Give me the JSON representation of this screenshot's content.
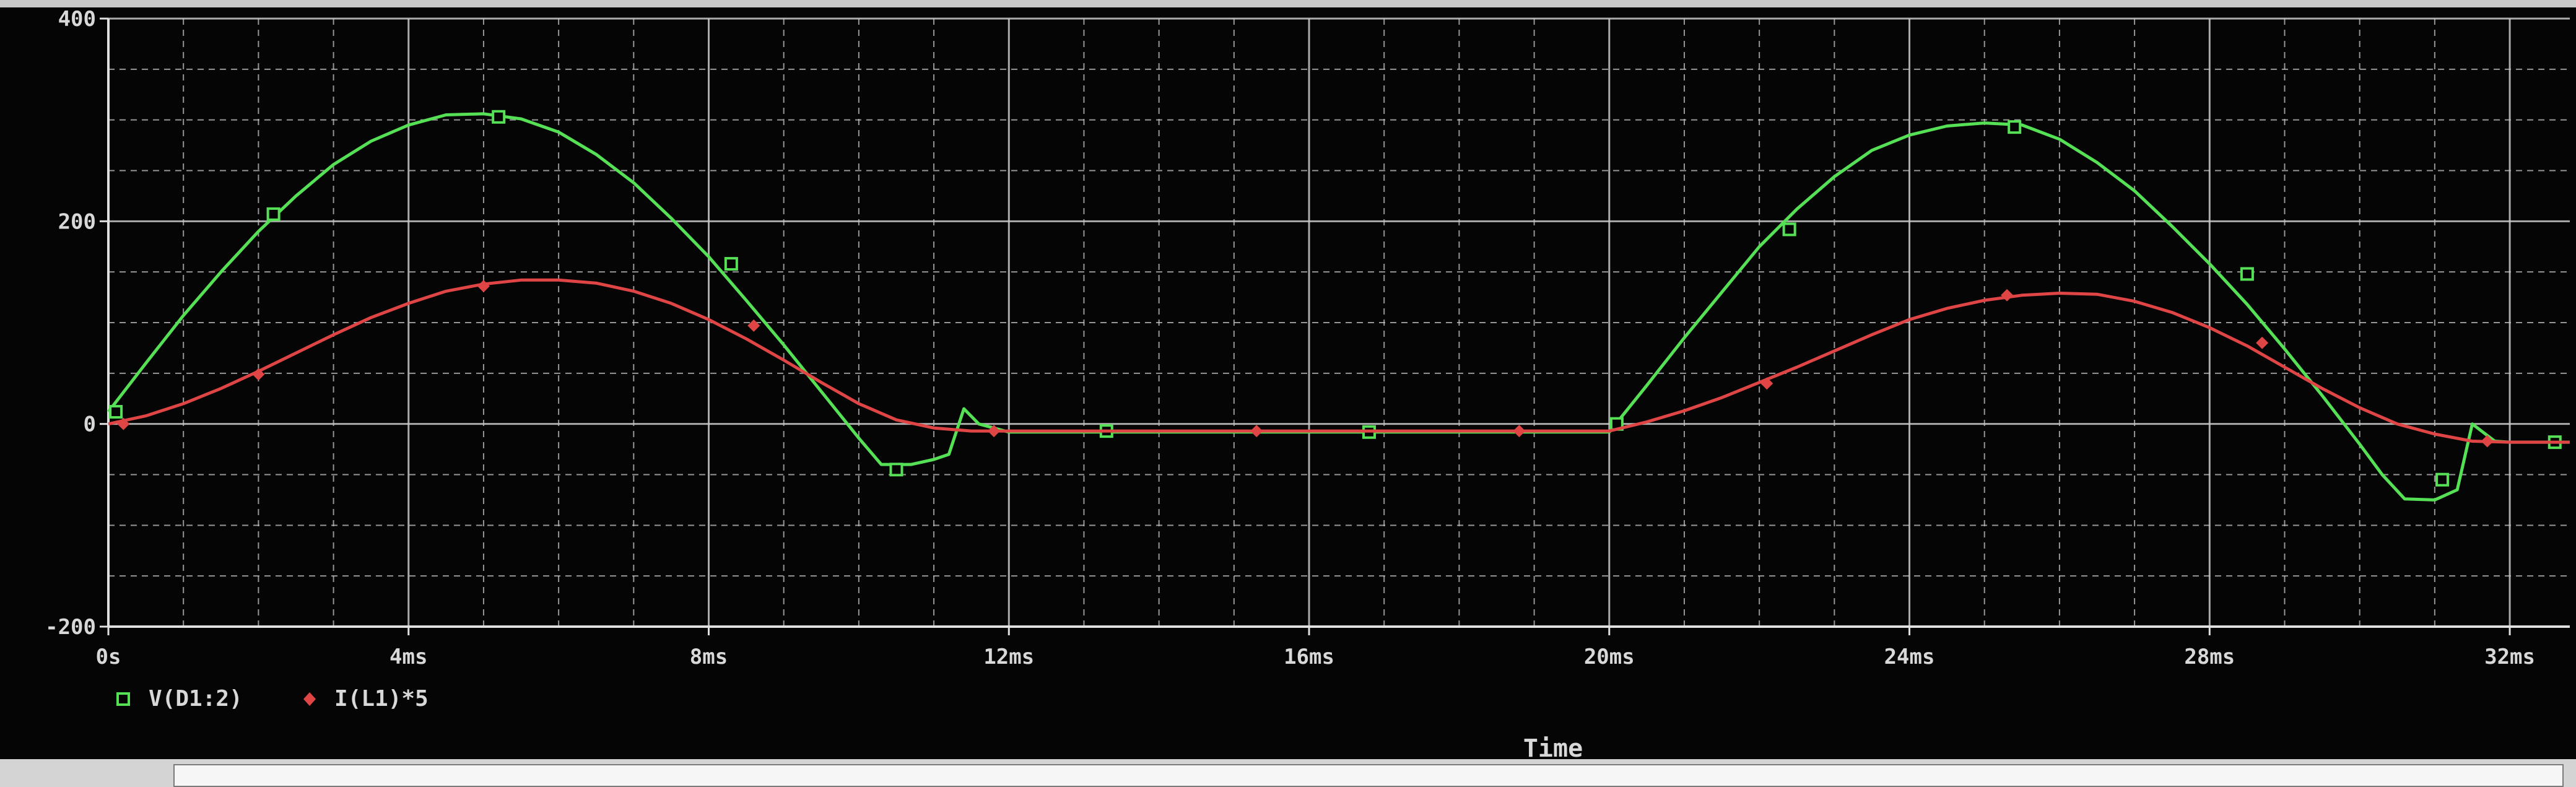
{
  "window": {
    "background": "#000000",
    "grid_color": "#c8c8c8"
  },
  "chart_data": {
    "type": "line",
    "title": "",
    "xlabel": "Time",
    "ylabel": "",
    "xlim": [
      0,
      32.8
    ],
    "ylim": [
      -200,
      400
    ],
    "x_unit": "ms",
    "grid": true,
    "x_ticks": [
      {
        "value": 0,
        "label": "0s"
      },
      {
        "value": 4,
        "label": "4ms"
      },
      {
        "value": 8,
        "label": "8ms"
      },
      {
        "value": 12,
        "label": "12ms"
      },
      {
        "value": 16,
        "label": "16ms"
      },
      {
        "value": 20,
        "label": "20ms"
      },
      {
        "value": 24,
        "label": "24ms"
      },
      {
        "value": 28,
        "label": "28ms"
      },
      {
        "value": 32,
        "label": "32ms"
      }
    ],
    "y_ticks": [
      {
        "value": -200,
        "label": "-200"
      },
      {
        "value": 0,
        "label": "0"
      },
      {
        "value": 200,
        "label": "200"
      },
      {
        "value": 400,
        "label": "400"
      }
    ],
    "legend_position": "bottom-left",
    "series": [
      {
        "name": "V(D1:2)",
        "color": "#55e055",
        "marker": "square",
        "x": [
          0,
          0.5,
          1.0,
          1.5,
          2.0,
          2.5,
          3.0,
          3.5,
          4.0,
          4.5,
          5.0,
          5.5,
          6.0,
          6.5,
          7.0,
          7.5,
          8.0,
          8.5,
          9.0,
          9.5,
          10.0,
          10.3,
          10.7,
          11.0,
          11.2,
          11.4,
          11.6,
          12.0,
          14.0,
          16.0,
          18.0,
          20.0,
          20.5,
          21.0,
          21.5,
          22.0,
          22.5,
          23.0,
          23.5,
          24.0,
          24.5,
          25.0,
          25.5,
          26.0,
          26.5,
          27.0,
          27.5,
          28.0,
          28.5,
          29.0,
          29.5,
          30.0,
          30.3,
          30.6,
          31.0,
          31.3,
          31.5,
          31.8,
          32.0,
          32.8
        ],
        "values": [
          12,
          60,
          107,
          150,
          190,
          225,
          256,
          279,
          295,
          305,
          306,
          301,
          288,
          266,
          238,
          203,
          165,
          122,
          78,
          32,
          -14,
          -40,
          -40,
          -35,
          -30,
          15,
          0,
          -8,
          -8,
          -8,
          -8,
          -8,
          38,
          85,
          130,
          175,
          212,
          244,
          270,
          285,
          294,
          297,
          295,
          281,
          258,
          230,
          195,
          158,
          118,
          74,
          28,
          -20,
          -50,
          -74,
          -75,
          -65,
          0,
          -17,
          -18,
          -18
        ],
        "marker_x": [
          0.1,
          2.2,
          5.2,
          8.3,
          10.5,
          13.3,
          16.8,
          20.1,
          22.4,
          25.4,
          28.5,
          31.1,
          32.6
        ],
        "marker_values": [
          12,
          207,
          303,
          158,
          -45,
          -7,
          -8,
          0,
          192,
          293,
          148,
          -55,
          -18
        ]
      },
      {
        "name": "I(L1)*5",
        "color": "#e04545",
        "marker": "diamond",
        "x": [
          0,
          0.5,
          1.0,
          1.5,
          2.0,
          2.5,
          3.0,
          3.5,
          4.0,
          4.5,
          5.0,
          5.5,
          6.0,
          6.5,
          7.0,
          7.5,
          8.0,
          8.5,
          9.0,
          9.5,
          10.0,
          10.5,
          11.0,
          11.5,
          12.0,
          14.0,
          16.0,
          18.0,
          20.0,
          20.5,
          21.0,
          21.5,
          22.0,
          22.5,
          23.0,
          23.5,
          24.0,
          24.5,
          25.0,
          25.5,
          26.0,
          26.5,
          27.0,
          27.5,
          28.0,
          28.5,
          29.0,
          29.5,
          30.0,
          30.5,
          31.0,
          31.5,
          32.0,
          32.8
        ],
        "values": [
          0,
          8,
          20,
          35,
          52,
          70,
          88,
          105,
          119,
          131,
          138,
          142,
          142,
          139,
          131,
          119,
          103,
          84,
          63,
          41,
          20,
          4,
          -4,
          -7,
          -7,
          -7,
          -7,
          -7,
          -7,
          2,
          13,
          26,
          41,
          56,
          72,
          88,
          103,
          114,
          122,
          127,
          129,
          128,
          121,
          110,
          95,
          77,
          56,
          35,
          16,
          0,
          -10,
          -17,
          -18,
          -18
        ],
        "marker_x": [
          0.2,
          2.0,
          5.0,
          8.6,
          11.8,
          15.3,
          18.8,
          22.1,
          25.3,
          28.7,
          31.7
        ],
        "marker_values": [
          0,
          49,
          136,
          97,
          -7,
          -7,
          -7,
          40,
          127,
          80,
          -17
        ]
      }
    ]
  }
}
